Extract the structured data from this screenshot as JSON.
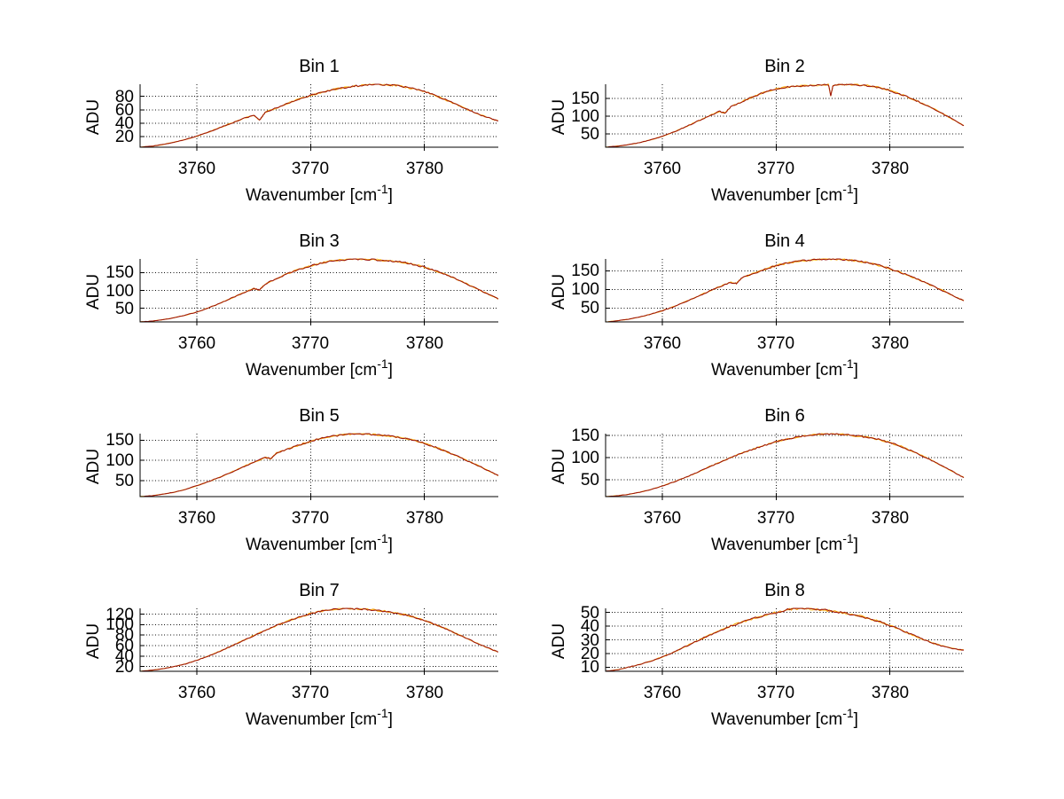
{
  "figure": {
    "background": "#FFFFFF",
    "axis_color": "#000000",
    "grid_color": "#111111",
    "grid_style": "dotted",
    "line_colors": {
      "primary": "#991111",
      "secondary": "#F59E00",
      "tertiary": "#FFD24D"
    },
    "ylabel": "ADU",
    "xlabel": {
      "text": "Wavenumber [cm",
      "sup": "-1",
      "end": "]"
    },
    "x_ticks": [
      "3760",
      "3770",
      "3780"
    ],
    "xlim": [
      3755,
      3786.5
    ]
  },
  "chart_data": [
    {
      "type": "line",
      "title": "Bin 1",
      "ylabel": "ADU",
      "xlabel": "Wavenumber [cm^-1]",
      "x_tick_values": [
        3760,
        3770,
        3780
      ],
      "y_ticks": [
        20,
        40,
        60,
        80
      ],
      "noise": 2.2,
      "points": [
        [
          3755,
          4.5
        ],
        [
          3756,
          6
        ],
        [
          3757,
          8.5
        ],
        [
          3758,
          12
        ],
        [
          3759,
          16
        ],
        [
          3760,
          21
        ],
        [
          3761,
          27
        ],
        [
          3762,
          33.5
        ],
        [
          3763,
          40
        ],
        [
          3764,
          46.5
        ],
        [
          3765,
          52
        ],
        [
          3765.5,
          44.5
        ],
        [
          3766,
          56
        ],
        [
          3767,
          63
        ],
        [
          3768,
          70
        ],
        [
          3769,
          76
        ],
        [
          3770,
          81.5
        ],
        [
          3771,
          86
        ],
        [
          3772,
          90
        ],
        [
          3773,
          93
        ],
        [
          3774,
          95.5
        ],
        [
          3775,
          97
        ],
        [
          3776,
          98
        ],
        [
          3777,
          97
        ],
        [
          3778,
          95
        ],
        [
          3779,
          91.5
        ],
        [
          3780,
          87
        ],
        [
          3781,
          81
        ],
        [
          3782,
          74
        ],
        [
          3783,
          66.5
        ],
        [
          3784,
          59
        ],
        [
          3785,
          52
        ],
        [
          3786,
          46
        ],
        [
          3786.5,
          44
        ]
      ]
    },
    {
      "type": "line",
      "title": "Bin 2",
      "ylabel": "ADU",
      "xlabel": "Wavenumber [cm^-1]",
      "x_tick_values": [
        3760,
        3770,
        3780
      ],
      "y_ticks": [
        50,
        100,
        150
      ],
      "noise": 4,
      "points": [
        [
          3755,
          12
        ],
        [
          3756,
          15
        ],
        [
          3757,
          19
        ],
        [
          3758,
          25
        ],
        [
          3759,
          33
        ],
        [
          3760,
          43
        ],
        [
          3761,
          55
        ],
        [
          3762,
          69
        ],
        [
          3763,
          84
        ],
        [
          3764,
          99
        ],
        [
          3765,
          113
        ],
        [
          3765.5,
          109
        ],
        [
          3766,
          126
        ],
        [
          3767,
          141
        ],
        [
          3768,
          155
        ],
        [
          3769,
          168
        ],
        [
          3770,
          177
        ],
        [
          3771,
          182
        ],
        [
          3772,
          185
        ],
        [
          3773,
          187
        ],
        [
          3774,
          188
        ],
        [
          3774.6,
          189
        ],
        [
          3774.8,
          158
        ],
        [
          3775,
          187
        ],
        [
          3776,
          190
        ],
        [
          3777,
          189
        ],
        [
          3778,
          186
        ],
        [
          3779,
          181
        ],
        [
          3780,
          172
        ],
        [
          3781,
          161
        ],
        [
          3782,
          148
        ],
        [
          3783,
          134
        ],
        [
          3784,
          118
        ],
        [
          3785,
          100
        ],
        [
          3786,
          82
        ],
        [
          3786.5,
          73
        ]
      ]
    },
    {
      "type": "line",
      "title": "Bin 3",
      "ylabel": "ADU",
      "xlabel": "Wavenumber [cm^-1]",
      "x_tick_values": [
        3760,
        3770,
        3780
      ],
      "y_ticks": [
        50,
        100,
        150
      ],
      "noise": 4,
      "points": [
        [
          3755,
          12
        ],
        [
          3756,
          14
        ],
        [
          3757,
          18
        ],
        [
          3758,
          24
        ],
        [
          3759,
          31
        ],
        [
          3760,
          40
        ],
        [
          3761,
          51
        ],
        [
          3762,
          64
        ],
        [
          3763,
          78
        ],
        [
          3764,
          92
        ],
        [
          3765,
          105
        ],
        [
          3765.5,
          101
        ],
        [
          3766,
          118
        ],
        [
          3767,
          133
        ],
        [
          3768,
          147
        ],
        [
          3769,
          159
        ],
        [
          3770,
          169
        ],
        [
          3771,
          177
        ],
        [
          3772,
          183
        ],
        [
          3773,
          186
        ],
        [
          3774,
          188
        ],
        [
          3775,
          187
        ],
        [
          3776,
          185
        ],
        [
          3777,
          183
        ],
        [
          3778,
          179
        ],
        [
          3779,
          173
        ],
        [
          3780,
          165
        ],
        [
          3781,
          155
        ],
        [
          3782,
          143
        ],
        [
          3783,
          129
        ],
        [
          3784,
          114
        ],
        [
          3785,
          99
        ],
        [
          3786,
          84
        ],
        [
          3786.5,
          76
        ]
      ]
    },
    {
      "type": "line",
      "title": "Bin 4",
      "ylabel": "ADU",
      "xlabel": "Wavenumber [cm^-1]",
      "x_tick_values": [
        3760,
        3770,
        3780
      ],
      "y_ticks": [
        50,
        100,
        150
      ],
      "noise": 4,
      "points": [
        [
          3755,
          13
        ],
        [
          3756,
          16
        ],
        [
          3757,
          20
        ],
        [
          3758,
          26
        ],
        [
          3759,
          34
        ],
        [
          3760,
          43
        ],
        [
          3761,
          54
        ],
        [
          3762,
          67
        ],
        [
          3763,
          80
        ],
        [
          3764,
          94
        ],
        [
          3765,
          107
        ],
        [
          3766,
          119
        ],
        [
          3766.5,
          116
        ],
        [
          3767,
          131
        ],
        [
          3768,
          143
        ],
        [
          3769,
          154
        ],
        [
          3770,
          164
        ],
        [
          3771,
          171
        ],
        [
          3772,
          176
        ],
        [
          3773,
          179
        ],
        [
          3774,
          181
        ],
        [
          3775,
          182
        ],
        [
          3776,
          180
        ],
        [
          3777,
          177
        ],
        [
          3778,
          172
        ],
        [
          3779,
          165
        ],
        [
          3780,
          156
        ],
        [
          3781,
          145
        ],
        [
          3782,
          133
        ],
        [
          3783,
          120
        ],
        [
          3784,
          106
        ],
        [
          3785,
          92
        ],
        [
          3786,
          77
        ],
        [
          3786.5,
          70
        ]
      ]
    },
    {
      "type": "line",
      "title": "Bin 5",
      "ylabel": "ADU",
      "xlabel": "Wavenumber [cm^-1]",
      "x_tick_values": [
        3760,
        3770,
        3780
      ],
      "y_ticks": [
        50,
        100,
        150
      ],
      "noise": 3.5,
      "points": [
        [
          3755,
          10
        ],
        [
          3756,
          12
        ],
        [
          3757,
          16
        ],
        [
          3758,
          21
        ],
        [
          3759,
          28
        ],
        [
          3760,
          37
        ],
        [
          3761,
          47
        ],
        [
          3762,
          58
        ],
        [
          3763,
          70
        ],
        [
          3764,
          83
        ],
        [
          3765,
          95
        ],
        [
          3766,
          107
        ],
        [
          3766.5,
          104
        ],
        [
          3767,
          118
        ],
        [
          3768,
          128
        ],
        [
          3769,
          138
        ],
        [
          3770,
          147
        ],
        [
          3771,
          155
        ],
        [
          3772,
          160
        ],
        [
          3773,
          164
        ],
        [
          3774,
          166
        ],
        [
          3775,
          165
        ],
        [
          3776,
          163
        ],
        [
          3777,
          160
        ],
        [
          3778,
          156
        ],
        [
          3779,
          150
        ],
        [
          3780,
          142
        ],
        [
          3781,
          132
        ],
        [
          3782,
          121
        ],
        [
          3783,
          109
        ],
        [
          3784,
          96
        ],
        [
          3785,
          83
        ],
        [
          3786,
          69
        ],
        [
          3786.5,
          62
        ]
      ]
    },
    {
      "type": "line",
      "title": "Bin 6",
      "ylabel": "ADU",
      "xlabel": "Wavenumber [cm^-1]",
      "x_tick_values": [
        3760,
        3770,
        3780
      ],
      "y_ticks": [
        50,
        100,
        150
      ],
      "noise": 3,
      "points": [
        [
          3755,
          12
        ],
        [
          3756,
          14
        ],
        [
          3757,
          17
        ],
        [
          3758,
          22
        ],
        [
          3759,
          28
        ],
        [
          3760,
          36
        ],
        [
          3761,
          45
        ],
        [
          3762,
          55
        ],
        [
          3763,
          66
        ],
        [
          3764,
          78
        ],
        [
          3765,
          89
        ],
        [
          3766,
          100
        ],
        [
          3767,
          110
        ],
        [
          3768,
          119
        ],
        [
          3769,
          128
        ],
        [
          3770,
          136
        ],
        [
          3771,
          142
        ],
        [
          3772,
          147
        ],
        [
          3773,
          151
        ],
        [
          3774,
          153
        ],
        [
          3775,
          154
        ],
        [
          3776,
          152
        ],
        [
          3777,
          149
        ],
        [
          3778,
          146
        ],
        [
          3779,
          141
        ],
        [
          3780,
          134
        ],
        [
          3781,
          125
        ],
        [
          3782,
          114
        ],
        [
          3783,
          102
        ],
        [
          3784,
          89
        ],
        [
          3785,
          76
        ],
        [
          3786,
          62
        ],
        [
          3786.5,
          55
        ]
      ]
    },
    {
      "type": "line",
      "title": "Bin 7",
      "ylabel": "ADU",
      "xlabel": "Wavenumber [cm^-1]",
      "x_tick_values": [
        3760,
        3770,
        3780
      ],
      "y_ticks": [
        20,
        40,
        60,
        80,
        100,
        120
      ],
      "noise": 2.6,
      "points": [
        [
          3755,
          11
        ],
        [
          3756,
          13
        ],
        [
          3757,
          16
        ],
        [
          3758,
          20
        ],
        [
          3759,
          25
        ],
        [
          3760,
          32
        ],
        [
          3761,
          40
        ],
        [
          3762,
          49
        ],
        [
          3763,
          59
        ],
        [
          3764,
          69
        ],
        [
          3765,
          79
        ],
        [
          3766,
          89
        ],
        [
          3767,
          98
        ],
        [
          3768,
          107
        ],
        [
          3769,
          114
        ],
        [
          3770,
          121
        ],
        [
          3771,
          126
        ],
        [
          3772,
          129
        ],
        [
          3773,
          131
        ],
        [
          3774,
          130
        ],
        [
          3775,
          129
        ],
        [
          3776,
          127
        ],
        [
          3777,
          124
        ],
        [
          3778,
          120
        ],
        [
          3779,
          115
        ],
        [
          3780,
          108
        ],
        [
          3781,
          100
        ],
        [
          3782,
          91
        ],
        [
          3783,
          81
        ],
        [
          3784,
          71
        ],
        [
          3785,
          61
        ],
        [
          3786,
          52
        ],
        [
          3786.5,
          48
        ]
      ]
    },
    {
      "type": "line",
      "title": "Bin 8",
      "ylabel": "ADU",
      "xlabel": "Wavenumber [cm^-1]",
      "x_tick_values": [
        3760,
        3770,
        3780
      ],
      "y_ticks": [
        10,
        20,
        30,
        40,
        50
      ],
      "noise": 1.3,
      "points": [
        [
          3755,
          7
        ],
        [
          3756,
          8
        ],
        [
          3757,
          10
        ],
        [
          3758,
          12
        ],
        [
          3759,
          14.5
        ],
        [
          3760,
          17.5
        ],
        [
          3761,
          21
        ],
        [
          3762,
          25
        ],
        [
          3763,
          29
        ],
        [
          3764,
          33
        ],
        [
          3765,
          36.5
        ],
        [
          3766,
          40
        ],
        [
          3767,
          43
        ],
        [
          3768,
          45.5
        ],
        [
          3769,
          48
        ],
        [
          3770,
          50
        ],
        [
          3771,
          52
        ],
        [
          3772,
          53
        ],
        [
          3773,
          52.5
        ],
        [
          3774,
          52
        ],
        [
          3775,
          51
        ],
        [
          3776,
          49.5
        ],
        [
          3777,
          48
        ],
        [
          3778,
          46
        ],
        [
          3779,
          43.5
        ],
        [
          3780,
          40.5
        ],
        [
          3781,
          37
        ],
        [
          3782,
          33.5
        ],
        [
          3783,
          30
        ],
        [
          3784,
          27
        ],
        [
          3785,
          24.5
        ],
        [
          3786,
          23
        ],
        [
          3786.5,
          22.5
        ]
      ]
    }
  ]
}
